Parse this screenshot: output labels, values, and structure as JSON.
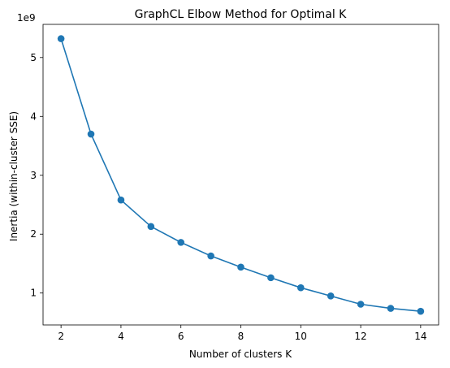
{
  "chart_data": {
    "type": "line",
    "title": "GraphCL Elbow Method for Optimal K",
    "xlabel": "Number of clusters K",
    "ylabel": "Inertia (within-cluster SSE)",
    "y_offset_text": "1e9",
    "y_multiplier": 1000000000,
    "xlim": [
      1.4,
      14.6
    ],
    "ylim": [
      0.458,
      5.563
    ],
    "x_ticks": [
      2,
      4,
      6,
      8,
      10,
      12,
      14
    ],
    "y_ticks": [
      1,
      2,
      3,
      4,
      5
    ],
    "grid": false,
    "series": [
      {
        "color": "#1f77b4",
        "marker": "circle",
        "x": [
          2,
          3,
          4,
          5,
          6,
          7,
          8,
          9,
          10,
          11,
          12,
          13,
          14
        ],
        "y": [
          5.32,
          3.7,
          2.58,
          2.13,
          1.86,
          1.63,
          1.44,
          1.26,
          1.09,
          0.95,
          0.81,
          0.74,
          0.69
        ]
      }
    ]
  }
}
